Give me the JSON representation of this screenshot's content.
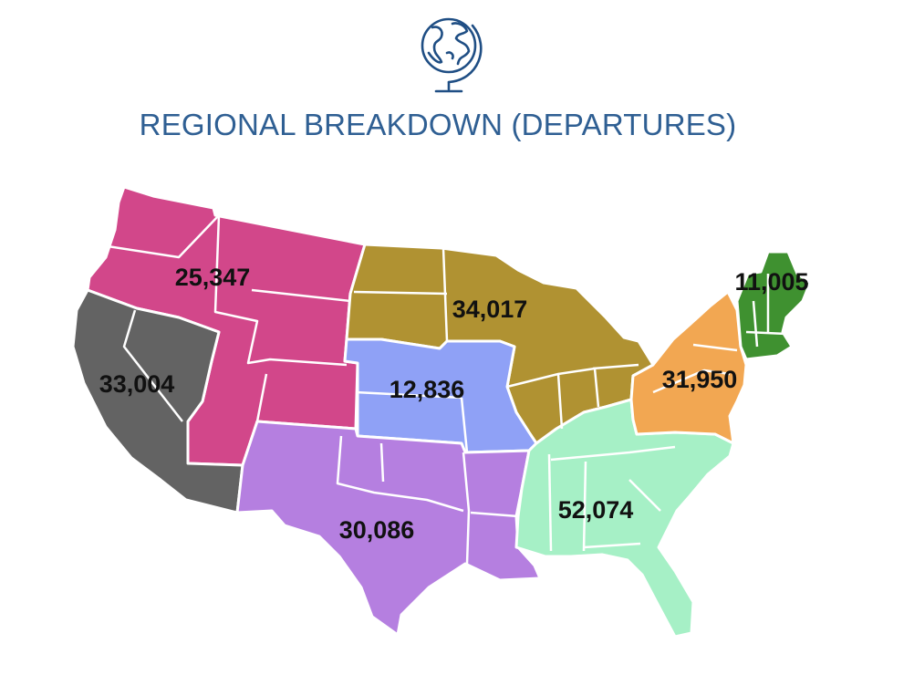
{
  "header": {
    "title": "REGIONAL BREAKDOWN (DEPARTURES)",
    "icon": "globe-icon"
  },
  "regions": [
    {
      "key": "northwest",
      "value": "25,347",
      "color": "#d2478a"
    },
    {
      "key": "west-coast",
      "value": "33,004",
      "color": "#636363"
    },
    {
      "key": "midwest",
      "value": "34,017",
      "color": "#b09232"
    },
    {
      "key": "central",
      "value": "12,836",
      "color": "#8fa1f6"
    },
    {
      "key": "south-central",
      "value": "30,086",
      "color": "#b57fe0"
    },
    {
      "key": "southeast",
      "value": "52,074",
      "color": "#a6f0c6"
    },
    {
      "key": "mid-atlantic",
      "value": "31,950",
      "color": "#f2a752"
    },
    {
      "key": "new-england",
      "value": "11,005",
      "color": "#3f9130"
    }
  ]
}
